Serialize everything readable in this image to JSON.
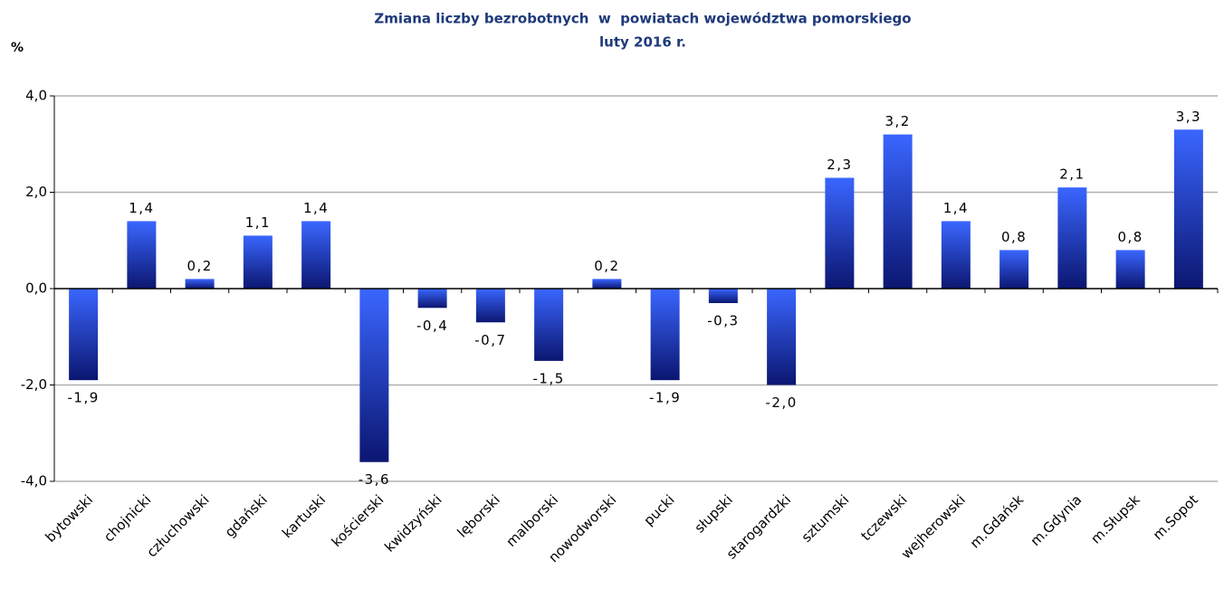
{
  "chart_data": {
    "type": "bar",
    "title": "Zmiana liczby bezrobotnych  w  powiatach województwa pomorskiego",
    "subtitle": "luty 2016 r.",
    "y_label": "%",
    "categories": [
      "bytowski",
      "chojnicki",
      "człuchowski",
      "gdański",
      "kartuski",
      "kościerski",
      "kwidzyński",
      "lęborski",
      "malborski",
      "nowodworski",
      "pucki",
      "słupski",
      "starogardzki",
      "sztumski",
      "tczewski",
      "wejherowski",
      "m.Gdańsk",
      "m.Gdynia",
      "m.Słupsk",
      "m.Sopot"
    ],
    "values": [
      -1.9,
      1.4,
      0.2,
      1.1,
      1.4,
      -3.6,
      -0.4,
      -0.7,
      -1.5,
      0.2,
      -1.9,
      -0.3,
      -2.0,
      2.3,
      3.2,
      1.4,
      0.8,
      2.1,
      0.8,
      3.3
    ],
    "value_labels": [
      "-1,9",
      "1,4",
      "0,2",
      "1,1",
      "1,4",
      "-3,6",
      "-0,4",
      "-0,7",
      "-1,5",
      "0,2",
      "-1,9",
      "-0,3",
      "-2,0",
      "2,3",
      "3,2",
      "1,4",
      "0,8",
      "2,1",
      "0,8",
      "3,3"
    ],
    "color": "#3a66ff",
    "ylim": [
      -4,
      4
    ],
    "yticks": [
      {
        "value": -4,
        "label": "-4,0"
      },
      {
        "value": -2,
        "label": "-2,0"
      },
      {
        "value": 0,
        "label": "0,0"
      },
      {
        "value": 2,
        "label": "2,0"
      },
      {
        "value": 4,
        "label": "4,0"
      }
    ],
    "grid": true
  }
}
